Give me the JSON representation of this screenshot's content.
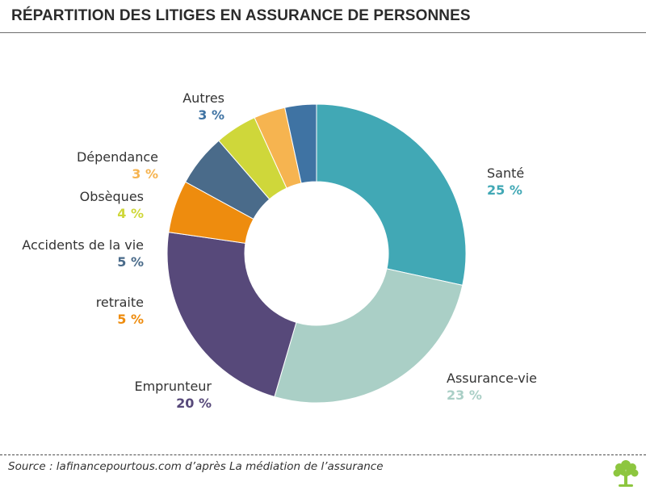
{
  "header": {
    "title": "RÉPARTITION DES LITIGES EN ASSURANCE DE PERSONNES"
  },
  "footer": {
    "source": "Source : lafinancepourtous.com d’après La médiation de l’assurance"
  },
  "logo": {
    "icon": "tree-icon",
    "color": "#8dc63f"
  },
  "chart_data": {
    "type": "pie",
    "donut": true,
    "unit": "%",
    "title": "RÉPARTITION DES LITIGES EN ASSURANCE DE PERSONNES",
    "slices": [
      {
        "name": "Santé",
        "value": 25,
        "display": "25 %",
        "color": "#41a8b5"
      },
      {
        "name": "Assurance-vie",
        "value": 23,
        "display": "23 %",
        "color": "#aacfc6"
      },
      {
        "name": "Emprunteur",
        "value": 20,
        "display": "20 %",
        "color": "#57497a"
      },
      {
        "name": "retraite",
        "value": 5,
        "display": "5 %",
        "color": "#ee8c0e"
      },
      {
        "name": "Accidents de la vie",
        "value": 5,
        "display": "5 %",
        "color": "#4a6b8a"
      },
      {
        "name": "Obsèques",
        "value": 4,
        "display": "4 %",
        "color": "#cfd73a"
      },
      {
        "name": "Dépendance",
        "value": 3,
        "display": "3 %",
        "color": "#f6b450"
      },
      {
        "name": "Autres",
        "value": 3,
        "display": "3 %",
        "color": "#3f73a3"
      }
    ]
  }
}
